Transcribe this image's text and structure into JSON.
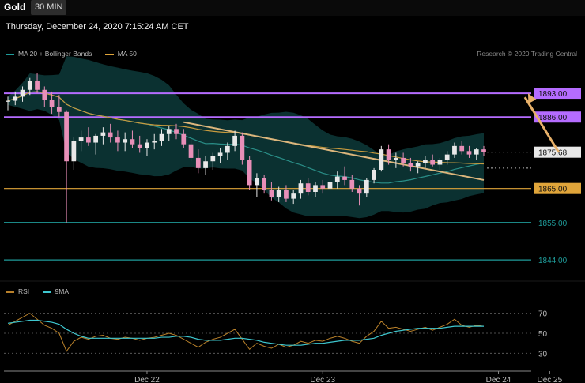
{
  "header": {
    "symbol": "Gold",
    "timeframe": "30 MIN",
    "datetime": "Thursday, December 24, 2020 7:15:24 AM CET",
    "copyright": "Research © 2020 Trading Central"
  },
  "legend": {
    "ma20_label": "MA 20 + Bollinger Bands",
    "ma50_label": "MA 50",
    "rsi_label": "RSI",
    "rsi_ma_label": "9MA"
  },
  "colors": {
    "resistance": "#b56cff",
    "support_orange": "#e0a53a",
    "support_teal": "#1f9c9a",
    "trendline": "#dcb67c",
    "arrow": "#e8b16a",
    "ma20": "#2a8f88",
    "ma50": "#c79a3e",
    "bollinger": "#0d3a3a",
    "candle_up": "#e8e8e8",
    "candle_down": "#e88fb8",
    "rsi": "#b8802a",
    "rsi_ma": "#3ec7cf"
  },
  "chart_data": {
    "type": "candlestick",
    "instrument": "Gold",
    "interval": "30 MIN",
    "ylim": [
      1838,
      1903
    ],
    "last_price": 1875.68,
    "levels": [
      {
        "value": 1893.0,
        "label": "1893.00",
        "role": "resistance"
      },
      {
        "value": 1886.0,
        "label": "1886.00",
        "role": "resistance"
      },
      {
        "value": 1865.0,
        "label": "1865.00",
        "role": "support"
      },
      {
        "value": 1855.0,
        "label": "1855.00",
        "role": "support"
      },
      {
        "value": 1844.0,
        "label": "1844.00",
        "role": "support"
      }
    ],
    "last_price_label": "1875.68",
    "x_ticks": [
      {
        "index": 19,
        "label": "Dec 22"
      },
      {
        "index": 43,
        "label": "Dec 23"
      },
      {
        "index": 67,
        "label": "Dec 24"
      },
      {
        "index": 74,
        "label": "Dec 25"
      }
    ],
    "trendline": {
      "from": [
        24,
        1884.5
      ],
      "to": [
        65,
        1867.5
      ]
    },
    "projection": {
      "from": [
        75,
        1875.7
      ],
      "to": [
        82,
        1893
      ]
    },
    "candles": [
      [
        1890.5,
        1892.0,
        1888.0,
        1890.8
      ],
      [
        1890.8,
        1893.5,
        1889.5,
        1892.0
      ],
      [
        1892.0,
        1895.0,
        1890.5,
        1894.0
      ],
      [
        1894.0,
        1897.5,
        1892.5,
        1896.5
      ],
      [
        1896.5,
        1899.0,
        1893.0,
        1894.0
      ],
      [
        1894.0,
        1895.0,
        1889.0,
        1891.0
      ],
      [
        1891.0,
        1893.5,
        1887.0,
        1889.0
      ],
      [
        1889.0,
        1892.5,
        1886.0,
        1887.5
      ],
      [
        1887.5,
        1888.0,
        1855.0,
        1873.0
      ],
      [
        1873.0,
        1880.0,
        1870.5,
        1879.0
      ],
      [
        1879.0,
        1882.0,
        1876.0,
        1880.0
      ],
      [
        1880.0,
        1883.0,
        1877.5,
        1878.5
      ],
      [
        1878.5,
        1881.0,
        1875.0,
        1880.5
      ],
      [
        1880.5,
        1883.0,
        1878.0,
        1881.5
      ],
      [
        1881.5,
        1884.0,
        1878.5,
        1880.0
      ],
      [
        1880.0,
        1882.0,
        1876.0,
        1878.5
      ],
      [
        1878.5,
        1881.5,
        1876.0,
        1879.5
      ],
      [
        1879.5,
        1882.0,
        1877.0,
        1878.0
      ],
      [
        1878.0,
        1880.5,
        1875.5,
        1877.0
      ],
      [
        1877.0,
        1879.5,
        1874.5,
        1878.5
      ],
      [
        1878.5,
        1881.0,
        1876.5,
        1879.0
      ],
      [
        1879.0,
        1882.5,
        1877.5,
        1881.0
      ],
      [
        1881.0,
        1883.5,
        1879.0,
        1882.5
      ],
      [
        1882.5,
        1884.0,
        1879.5,
        1881.0
      ],
      [
        1881.0,
        1882.5,
        1877.0,
        1878.0
      ],
      [
        1878.0,
        1879.5,
        1873.0,
        1874.0
      ],
      [
        1874.0,
        1876.5,
        1869.5,
        1871.0
      ],
      [
        1871.0,
        1874.5,
        1869.0,
        1873.0
      ],
      [
        1873.0,
        1875.5,
        1870.5,
        1874.5
      ],
      [
        1874.5,
        1877.0,
        1872.5,
        1875.5
      ],
      [
        1875.5,
        1878.5,
        1873.5,
        1877.5
      ],
      [
        1877.5,
        1882.0,
        1876.0,
        1880.5
      ],
      [
        1880.5,
        1881.5,
        1872.0,
        1873.5
      ],
      [
        1873.5,
        1874.5,
        1864.5,
        1866.0
      ],
      [
        1866.0,
        1869.5,
        1862.5,
        1868.0
      ],
      [
        1868.0,
        1869.0,
        1863.5,
        1864.5
      ],
      [
        1864.5,
        1867.0,
        1861.5,
        1862.5
      ],
      [
        1862.5,
        1865.5,
        1861.0,
        1864.5
      ],
      [
        1864.5,
        1866.0,
        1861.0,
        1862.0
      ],
      [
        1862.0,
        1864.5,
        1860.5,
        1863.5
      ],
      [
        1863.5,
        1867.5,
        1862.0,
        1866.5
      ],
      [
        1866.5,
        1868.0,
        1863.0,
        1864.0
      ],
      [
        1864.0,
        1867.0,
        1862.5,
        1866.0
      ],
      [
        1866.0,
        1867.5,
        1863.5,
        1865.0
      ],
      [
        1865.0,
        1868.0,
        1863.5,
        1867.0
      ],
      [
        1867.0,
        1870.0,
        1865.0,
        1868.5
      ],
      [
        1868.5,
        1871.5,
        1866.0,
        1867.5
      ],
      [
        1867.5,
        1869.0,
        1864.0,
        1865.0
      ],
      [
        1865.0,
        1866.0,
        1860.0,
        1863.5
      ],
      [
        1863.5,
        1868.0,
        1862.5,
        1867.5
      ],
      [
        1867.5,
        1871.0,
        1866.5,
        1870.5
      ],
      [
        1870.5,
        1877.5,
        1870.0,
        1876.5
      ],
      [
        1876.5,
        1878.0,
        1872.0,
        1873.5
      ],
      [
        1873.5,
        1875.5,
        1871.0,
        1874.0
      ],
      [
        1874.0,
        1875.5,
        1871.5,
        1872.5
      ],
      [
        1872.5,
        1874.0,
        1870.0,
        1871.5
      ],
      [
        1871.5,
        1873.0,
        1869.5,
        1872.5
      ],
      [
        1872.5,
        1874.5,
        1871.0,
        1873.5
      ],
      [
        1873.5,
        1875.0,
        1871.5,
        1872.0
      ],
      [
        1872.0,
        1874.0,
        1870.5,
        1873.5
      ],
      [
        1873.5,
        1876.0,
        1872.0,
        1875.0
      ],
      [
        1875.0,
        1878.5,
        1874.0,
        1877.5
      ],
      [
        1877.5,
        1879.0,
        1875.0,
        1876.0
      ],
      [
        1876.0,
        1877.5,
        1874.0,
        1875.0
      ],
      [
        1875.0,
        1877.0,
        1873.5,
        1876.5
      ],
      [
        1876.5,
        1877.5,
        1874.5,
        1875.68
      ]
    ],
    "rsi": {
      "ylim": [
        20,
        80
      ],
      "ticks": [
        70,
        50,
        30
      ],
      "values": [
        58,
        62,
        66,
        70,
        64,
        58,
        55,
        50,
        32,
        42,
        46,
        44,
        47,
        48,
        45,
        44,
        46,
        45,
        43,
        45,
        46,
        48,
        50,
        48,
        44,
        40,
        36,
        41,
        44,
        46,
        50,
        54,
        44,
        34,
        40,
        37,
        35,
        39,
        36,
        38,
        42,
        40,
        43,
        42,
        45,
        47,
        45,
        42,
        40,
        47,
        52,
        62,
        55,
        56,
        54,
        52,
        54,
        56,
        53,
        56,
        59,
        64,
        58,
        56,
        58,
        57
      ],
      "ma": [
        60,
        61,
        62,
        63,
        63,
        62,
        61,
        59,
        54,
        50,
        47,
        45,
        45,
        45,
        45,
        45,
        45,
        45,
        45,
        45,
        45,
        46,
        46,
        47,
        47,
        46,
        44,
        43,
        43,
        43,
        44,
        45,
        45,
        44,
        43,
        41,
        40,
        39,
        38,
        38,
        38,
        39,
        40,
        40,
        41,
        42,
        43,
        43,
        43,
        44,
        45,
        48,
        50,
        52,
        53,
        54,
        55,
        55,
        55,
        55,
        56,
        57,
        57,
        57,
        57,
        57
      ]
    }
  }
}
